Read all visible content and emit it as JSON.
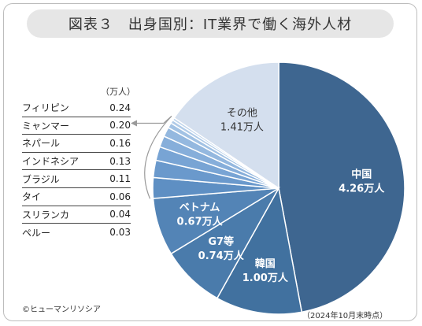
{
  "title": "図表３　出身国別：IT業界で働く海外人材",
  "unit": "（万人）",
  "credit": "©ヒューマンリソシア",
  "date_note": "（2024年10月末時点）",
  "chart_data": {
    "type": "pie",
    "slices": [
      {
        "label": "中国",
        "value": 4.26,
        "value_label": "4.26万人",
        "color": "#3e6690"
      },
      {
        "label": "韓国",
        "value": 1.0,
        "value_label": "1.00万人",
        "color": "#41719f"
      },
      {
        "label": "G7等",
        "value": 0.74,
        "value_label": "0.74万人",
        "color": "#4a7bab"
      },
      {
        "label": "ベトナム",
        "value": 0.67,
        "value_label": "0.67万人",
        "color": "#5384b6"
      },
      {
        "label": "フィリピン",
        "value": 0.24,
        "color": "#5e8fc3"
      },
      {
        "label": "ミャンマー",
        "value": 0.2,
        "color": "#6a99cc"
      },
      {
        "label": "ネパール",
        "value": 0.16,
        "color": "#78a4d4"
      },
      {
        "label": "インドネシア",
        "value": 0.13,
        "color": "#86aeda"
      },
      {
        "label": "ブラジル",
        "value": 0.11,
        "color": "#94b8df"
      },
      {
        "label": "タイ",
        "value": 0.06,
        "color": "#a2c2e4"
      },
      {
        "label": "スリランカ",
        "value": 0.04,
        "color": "#b0cbe8"
      },
      {
        "label": "ペルー",
        "value": 0.03,
        "color": "#bed4ec"
      },
      {
        "label": "その他",
        "value": 1.41,
        "value_label": "1.41万人",
        "color": "#d4dfee"
      }
    ]
  },
  "small_countries": [
    {
      "name": "フィリピン",
      "value": "0.24"
    },
    {
      "name": "ミャンマー",
      "value": "0.20"
    },
    {
      "name": "ネパール",
      "value": "0.16"
    },
    {
      "name": "インドネシア",
      "value": "0.13"
    },
    {
      "name": "ブラジル",
      "value": "0.11"
    },
    {
      "name": "タイ",
      "value": "0.06"
    },
    {
      "name": "スリランカ",
      "value": "0.04"
    },
    {
      "name": "ペルー",
      "value": "0.03"
    }
  ]
}
